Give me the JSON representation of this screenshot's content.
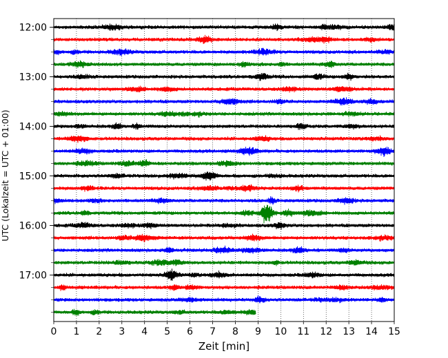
{
  "chart_data": {
    "type": "line",
    "subtype": "helicorder",
    "xlabel": "Zeit  [min]",
    "ylabel": "UTC (Lokalzeit = UTC + 01:00)",
    "xlim": [
      0,
      15
    ],
    "x_ticks": [
      0,
      1,
      2,
      3,
      4,
      5,
      6,
      7,
      8,
      9,
      10,
      11,
      12,
      13,
      14,
      15
    ],
    "y_tick_labels": [
      "12:00",
      "13:00",
      "14:00",
      "15:00",
      "16:00",
      "17:00"
    ],
    "grid": "vertical dotted lines at each minute",
    "line_colors": [
      "#000000",
      "#ff0000",
      "#0000ff",
      "#008000"
    ],
    "rows": [
      {
        "start": "12:00",
        "color": "#000000",
        "end_min": 15
      },
      {
        "start": "12:15",
        "color": "#ff0000",
        "end_min": 15
      },
      {
        "start": "12:30",
        "color": "#0000ff",
        "end_min": 15
      },
      {
        "start": "12:45",
        "color": "#008000",
        "end_min": 15
      },
      {
        "start": "13:00",
        "color": "#000000",
        "end_min": 15
      },
      {
        "start": "13:15",
        "color": "#ff0000",
        "end_min": 15
      },
      {
        "start": "13:30",
        "color": "#0000ff",
        "end_min": 15
      },
      {
        "start": "13:45",
        "color": "#008000",
        "end_min": 15
      },
      {
        "start": "14:00",
        "color": "#000000",
        "end_min": 15
      },
      {
        "start": "14:15",
        "color": "#ff0000",
        "end_min": 15
      },
      {
        "start": "14:30",
        "color": "#0000ff",
        "end_min": 15
      },
      {
        "start": "14:45",
        "color": "#008000",
        "end_min": 15
      },
      {
        "start": "15:00",
        "color": "#000000",
        "end_min": 15
      },
      {
        "start": "15:15",
        "color": "#ff0000",
        "end_min": 15
      },
      {
        "start": "15:30",
        "color": "#0000ff",
        "end_min": 15
      },
      {
        "start": "15:45",
        "color": "#008000",
        "end_min": 15,
        "event": {
          "center_min": 9.4,
          "width_min": 0.55
        }
      },
      {
        "start": "16:00",
        "color": "#000000",
        "end_min": 15
      },
      {
        "start": "16:15",
        "color": "#ff0000",
        "end_min": 15
      },
      {
        "start": "16:30",
        "color": "#0000ff",
        "end_min": 15
      },
      {
        "start": "16:45",
        "color": "#008000",
        "end_min": 15
      },
      {
        "start": "17:00",
        "color": "#000000",
        "end_min": 15
      },
      {
        "start": "17:15",
        "color": "#ff0000",
        "end_min": 15
      },
      {
        "start": "17:30",
        "color": "#0000ff",
        "end_min": 15
      },
      {
        "start": "17:45",
        "color": "#008000",
        "end_min": 8.9
      }
    ]
  }
}
